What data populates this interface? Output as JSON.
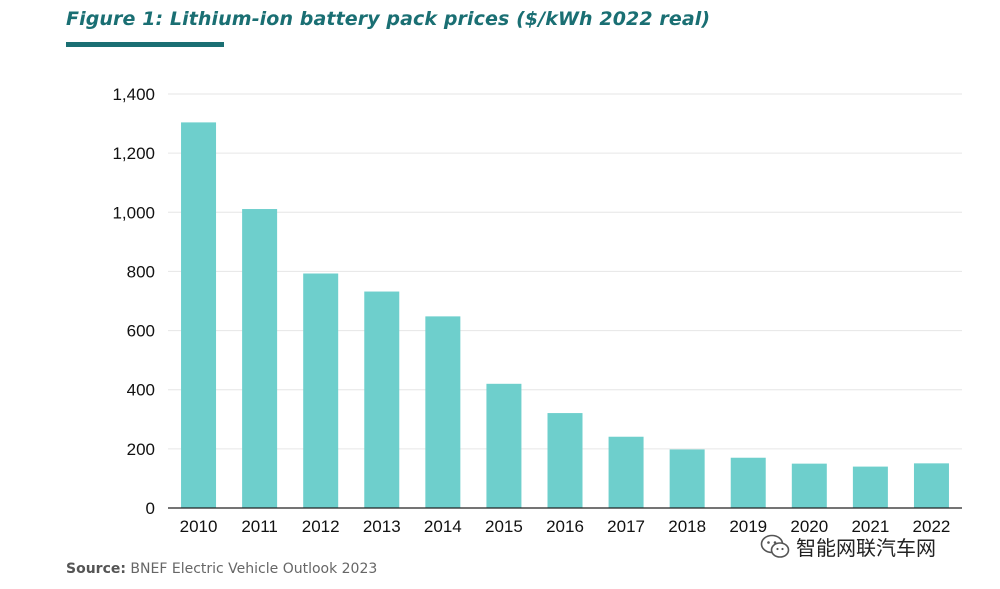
{
  "colors": {
    "accent": "#1a6f73",
    "bar": "#6ecfcc",
    "grid": "#e6e6e6",
    "axis": "#222222"
  },
  "source": {
    "label": "Source:",
    "text": " BNEF Electric Vehicle Outlook 2023"
  },
  "watermark": {
    "icon": "wechat-icon",
    "text": "智能网联汽车网"
  },
  "chart_data": {
    "type": "bar",
    "title": "Figure 1: Lithium-ion battery pack prices ($/kWh 2022 real)",
    "xlabel": "",
    "ylabel": "",
    "ylim": [
      0,
      1400
    ],
    "yticks": [
      0,
      200,
      400,
      600,
      800,
      1000,
      1200,
      1400
    ],
    "ytick_labels": [
      "0",
      "200",
      "400",
      "600",
      "800",
      "1,000",
      "1,200",
      "1,400"
    ],
    "grid": true,
    "categories": [
      "2010",
      "2011",
      "2012",
      "2013",
      "2014",
      "2015",
      "2016",
      "2017",
      "2018",
      "2019",
      "2020",
      "2021",
      "2022"
    ],
    "values": [
      1304,
      1011,
      793,
      732,
      648,
      420,
      321,
      241,
      198,
      170,
      150,
      140,
      151
    ]
  }
}
